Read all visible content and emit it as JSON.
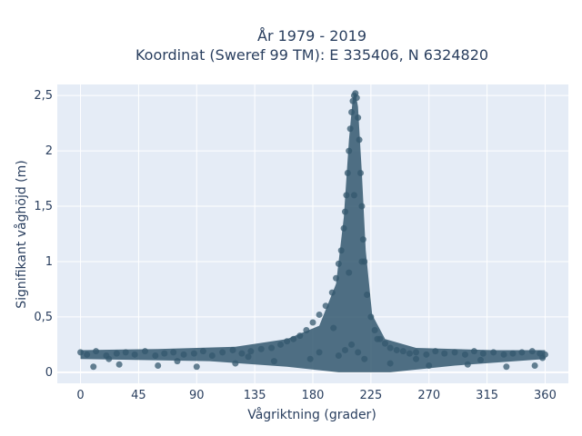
{
  "chart_data": {
    "type": "scatter",
    "title_line1": "År 1979 - 2019",
    "title_line2": "Koordinat (Sweref 99 TM): E 335406, N 6324820",
    "xlabel": "Vågriktning (grader)",
    "ylabel": "Signifikant våghöjd (m)",
    "xlim": [
      -18,
      378
    ],
    "ylim": [
      -0.1,
      2.6
    ],
    "x_ticks": [
      0,
      45,
      90,
      135,
      180,
      225,
      270,
      315,
      360
    ],
    "x_tick_labels": [
      "0",
      "45",
      "90",
      "135",
      "180",
      "225",
      "270",
      "315",
      "360"
    ],
    "y_ticks": [
      0,
      0.5,
      1,
      1.5,
      2,
      2.5
    ],
    "y_tick_labels": [
      "0",
      "0,5",
      "1",
      "1,5",
      "2",
      "2,5"
    ],
    "grid": true,
    "legend": "none",
    "marker_color": "#34586e",
    "plot_bg": "#e5ecf6",
    "series": [
      {
        "x": [
          0,
          5,
          12,
          20,
          28,
          35,
          42,
          50,
          58,
          65,
          72,
          80,
          88,
          95,
          102,
          110,
          118,
          125,
          132,
          140,
          148,
          155,
          160,
          165,
          170,
          175,
          180,
          185,
          190,
          195,
          198,
          200,
          202,
          204,
          205,
          206,
          207,
          208,
          209,
          210,
          211,
          212,
          213,
          214,
          215,
          216,
          217,
          218,
          219,
          220,
          222,
          225,
          228,
          232,
          236,
          240,
          245,
          250,
          255,
          260,
          268,
          275,
          282,
          290,
          298,
          305,
          312,
          320,
          328,
          335,
          342,
          350,
          356,
          360,
          10,
          30,
          60,
          90,
          120,
          150,
          178,
          200,
          205,
          210,
          215,
          220,
          240,
          270,
          300,
          330,
          352,
          22,
          75,
          130,
          185,
          196,
          208,
          212,
          218,
          230,
          260,
          310,
          358
        ],
        "y": [
          0.18,
          0.16,
          0.19,
          0.15,
          0.17,
          0.18,
          0.16,
          0.19,
          0.15,
          0.17,
          0.18,
          0.16,
          0.17,
          0.19,
          0.15,
          0.18,
          0.2,
          0.17,
          0.19,
          0.21,
          0.22,
          0.25,
          0.28,
          0.3,
          0.33,
          0.38,
          0.45,
          0.52,
          0.6,
          0.72,
          0.85,
          0.98,
          1.1,
          1.3,
          1.45,
          1.6,
          1.8,
          2.0,
          2.2,
          2.35,
          2.45,
          2.5,
          2.52,
          2.48,
          2.3,
          2.1,
          1.8,
          1.5,
          1.2,
          1.0,
          0.7,
          0.5,
          0.38,
          0.3,
          0.26,
          0.22,
          0.2,
          0.19,
          0.17,
          0.18,
          0.16,
          0.19,
          0.17,
          0.18,
          0.16,
          0.19,
          0.17,
          0.18,
          0.16,
          0.17,
          0.18,
          0.19,
          0.17,
          0.16,
          0.05,
          0.07,
          0.06,
          0.05,
          0.08,
          0.1,
          0.12,
          0.15,
          0.2,
          0.25,
          0.18,
          0.12,
          0.08,
          0.06,
          0.07,
          0.05,
          0.06,
          0.12,
          0.1,
          0.14,
          0.18,
          0.4,
          0.9,
          1.6,
          1.0,
          0.3,
          0.12,
          0.11,
          0.13
        ]
      }
    ]
  }
}
